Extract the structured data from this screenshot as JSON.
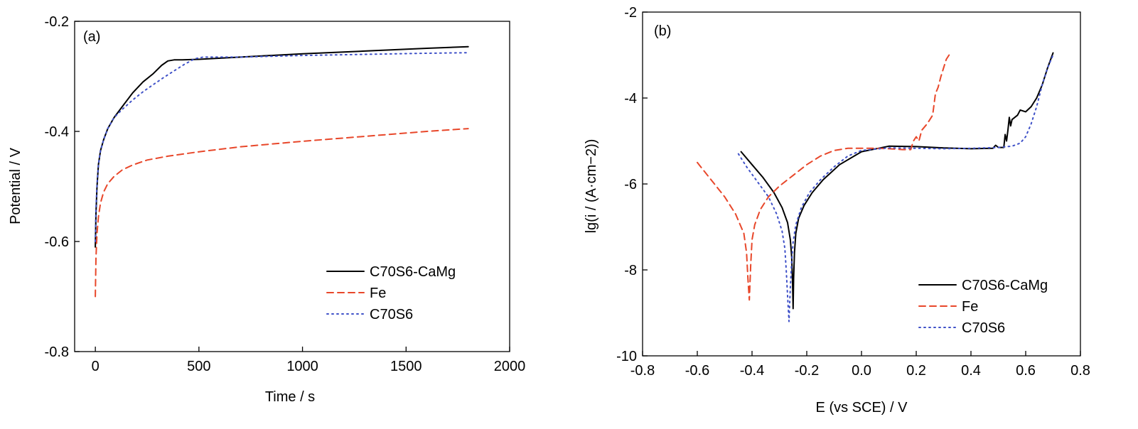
{
  "chart_data": [
    {
      "type": "line",
      "panel_label": "(a)",
      "xlabel": "Time / s",
      "ylabel": "Potential / V",
      "xlim": [
        -100,
        2000
      ],
      "ylim": [
        -0.8,
        -0.2
      ],
      "xticks": [
        0,
        500,
        1000,
        1500,
        2000
      ],
      "yticks": [
        -0.8,
        -0.6,
        -0.4,
        -0.2
      ],
      "legend_position": "bottom-right",
      "series": [
        {
          "name": "C70S6-CaMg",
          "color": "#000000",
          "style": "solid",
          "x": [
            0,
            3,
            8,
            15,
            25,
            40,
            60,
            90,
            130,
            180,
            230,
            280,
            320,
            350,
            380,
            420,
            500,
            700,
            1000,
            1300,
            1600,
            1800
          ],
          "y": [
            -0.61,
            -0.55,
            -0.5,
            -0.46,
            -0.435,
            -0.415,
            -0.395,
            -0.375,
            -0.355,
            -0.33,
            -0.31,
            -0.295,
            -0.28,
            -0.272,
            -0.27,
            -0.27,
            -0.269,
            -0.265,
            -0.259,
            -0.254,
            -0.249,
            -0.246
          ]
        },
        {
          "name": "Fe",
          "color": "#e8472a",
          "style": "dashed",
          "x": [
            0,
            3,
            8,
            15,
            25,
            40,
            60,
            90,
            130,
            180,
            250,
            350,
            500,
            700,
            1000,
            1300,
            1600,
            1800
          ],
          "y": [
            -0.7,
            -0.63,
            -0.585,
            -0.555,
            -0.53,
            -0.51,
            -0.495,
            -0.482,
            -0.47,
            -0.461,
            -0.452,
            -0.445,
            -0.437,
            -0.428,
            -0.418,
            -0.409,
            -0.4,
            -0.395
          ]
        },
        {
          "name": "C70S6",
          "color": "#3f51c8",
          "style": "dotted",
          "x": [
            0,
            3,
            8,
            15,
            25,
            40,
            60,
            90,
            130,
            180,
            230,
            280,
            330,
            380,
            430,
            480,
            520,
            700,
            1000,
            1300,
            1600,
            1800
          ],
          "y": [
            -0.6,
            -0.54,
            -0.495,
            -0.46,
            -0.435,
            -0.415,
            -0.395,
            -0.375,
            -0.36,
            -0.343,
            -0.328,
            -0.315,
            -0.302,
            -0.29,
            -0.278,
            -0.268,
            -0.265,
            -0.265,
            -0.262,
            -0.26,
            -0.258,
            -0.257
          ]
        }
      ]
    },
    {
      "type": "line",
      "panel_label": "(b)",
      "xlabel": "E (vs SCE) / V",
      "ylabel": "lg(i / (A·cm−2))",
      "xlim": [
        -0.8,
        0.8
      ],
      "ylim": [
        -10,
        -2
      ],
      "xticks": [
        -0.8,
        -0.6,
        -0.4,
        -0.2,
        0.0,
        0.2,
        0.4,
        0.6,
        0.8
      ],
      "yticks": [
        -10,
        -8,
        -6,
        -4,
        -2
      ],
      "legend_position": "bottom-right",
      "series": [
        {
          "name": "C70S6-CaMg",
          "color": "#000000",
          "style": "solid",
          "x": [
            -0.44,
            -0.4,
            -0.36,
            -0.32,
            -0.29,
            -0.27,
            -0.26,
            -0.255,
            -0.252,
            -0.25,
            -0.248,
            -0.245,
            -0.24,
            -0.23,
            -0.21,
            -0.18,
            -0.14,
            -0.08,
            0.0,
            0.1,
            0.2,
            0.3,
            0.4,
            0.48,
            0.49,
            0.5,
            0.52,
            0.525,
            0.53,
            0.535,
            0.54,
            0.545,
            0.55,
            0.57,
            0.58,
            0.6,
            0.62,
            0.64,
            0.66,
            0.68,
            0.7
          ],
          "y": [
            -5.25,
            -5.55,
            -5.85,
            -6.2,
            -6.55,
            -6.9,
            -7.3,
            -7.7,
            -8.3,
            -8.9,
            -8.2,
            -7.6,
            -7.15,
            -6.8,
            -6.5,
            -6.2,
            -5.9,
            -5.55,
            -5.25,
            -5.12,
            -5.13,
            -5.16,
            -5.18,
            -5.17,
            -5.1,
            -5.15,
            -5.15,
            -4.85,
            -5.0,
            -4.75,
            -4.45,
            -4.65,
            -4.5,
            -4.4,
            -4.28,
            -4.32,
            -4.2,
            -4.0,
            -3.7,
            -3.3,
            -2.95
          ]
        },
        {
          "name": "Fe",
          "color": "#e8472a",
          "style": "dashed",
          "x": [
            -0.6,
            -0.55,
            -0.5,
            -0.46,
            -0.43,
            -0.42,
            -0.415,
            -0.41,
            -0.405,
            -0.4,
            -0.39,
            -0.37,
            -0.34,
            -0.3,
            -0.25,
            -0.2,
            -0.15,
            -0.1,
            -0.05,
            0.0,
            0.05,
            0.1,
            0.15,
            0.18,
            0.19,
            0.2,
            0.21,
            0.22,
            0.24,
            0.26,
            0.27,
            0.28,
            0.29,
            0.3,
            0.31,
            0.32
          ],
          "y": [
            -5.5,
            -5.9,
            -6.3,
            -6.7,
            -7.15,
            -7.6,
            -8.2,
            -8.7,
            -7.9,
            -7.3,
            -6.95,
            -6.6,
            -6.3,
            -6.05,
            -5.8,
            -5.55,
            -5.35,
            -5.22,
            -5.17,
            -5.17,
            -5.17,
            -5.18,
            -5.2,
            -5.2,
            -5.0,
            -4.9,
            -5.0,
            -4.75,
            -4.6,
            -4.4,
            -3.9,
            -3.75,
            -3.5,
            -3.3,
            -3.1,
            -3.0
          ]
        },
        {
          "name": "C70S6",
          "color": "#3f51c8",
          "style": "dotted",
          "x": [
            -0.45,
            -0.42,
            -0.38,
            -0.34,
            -0.31,
            -0.29,
            -0.28,
            -0.275,
            -0.27,
            -0.265,
            -0.26,
            -0.255,
            -0.25,
            -0.24,
            -0.22,
            -0.19,
            -0.15,
            -0.1,
            -0.05,
            0.0,
            0.1,
            0.2,
            0.3,
            0.4,
            0.5,
            0.55,
            0.58,
            0.6,
            0.62,
            0.64,
            0.66,
            0.68,
            0.7
          ],
          "y": [
            -5.3,
            -5.6,
            -5.95,
            -6.3,
            -6.7,
            -7.1,
            -7.5,
            -8.0,
            -8.6,
            -9.2,
            -8.4,
            -7.8,
            -7.35,
            -6.95,
            -6.55,
            -6.2,
            -5.9,
            -5.6,
            -5.35,
            -5.22,
            -5.16,
            -5.17,
            -5.18,
            -5.17,
            -5.15,
            -5.12,
            -5.05,
            -4.9,
            -4.6,
            -4.2,
            -3.7,
            -3.3,
            -3.0
          ]
        }
      ]
    }
  ]
}
